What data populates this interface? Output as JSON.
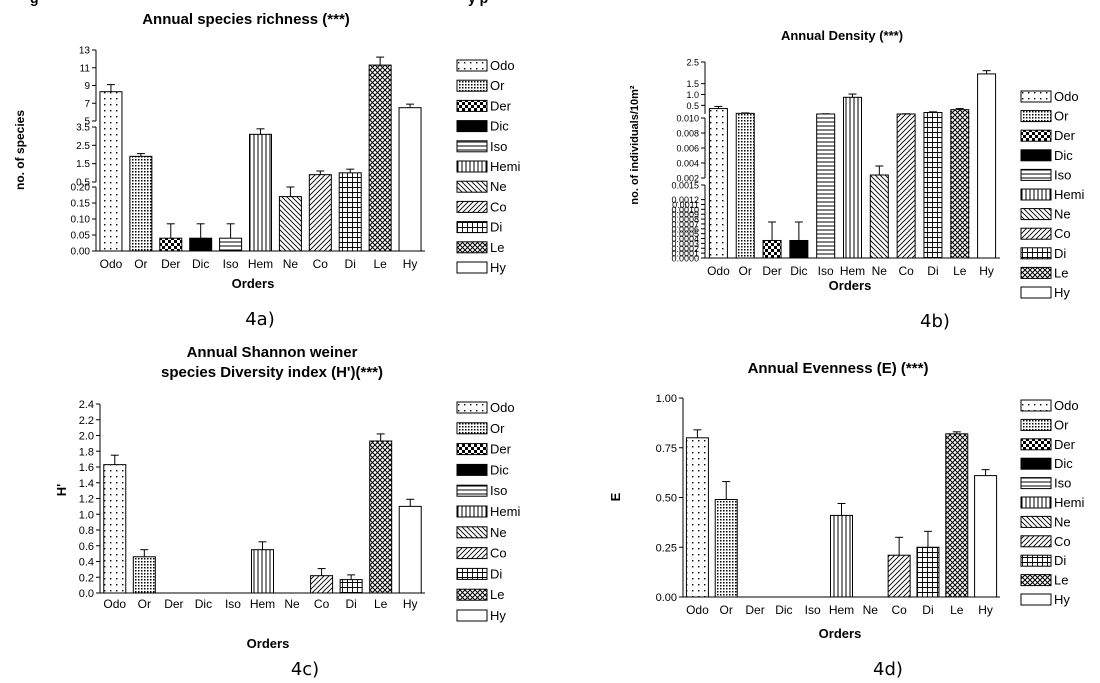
{
  "top_fragment_left": "g",
  "top_fragment_right": "y p",
  "legend": [
    {
      "label": "Odo",
      "pattern": "dots"
    },
    {
      "label": "Or",
      "pattern": "dense"
    },
    {
      "label": "Der",
      "pattern": "checker"
    },
    {
      "label": "Dic",
      "pattern": "solid"
    },
    {
      "label": "Iso",
      "pattern": "hlines"
    },
    {
      "label": "Hemi",
      "pattern": "vlines"
    },
    {
      "label": "Ne",
      "pattern": "diagdown"
    },
    {
      "label": "Co",
      "pattern": "diagup"
    },
    {
      "label": "Di",
      "pattern": "grid"
    },
    {
      "label": "Le",
      "pattern": "crosshatch"
    },
    {
      "label": "Hy",
      "pattern": "none"
    }
  ],
  "chart_data": [
    {
      "type": "bar",
      "title": "Annual species richness (***)",
      "xlabel": "Orders",
      "ylabel": "no. of species",
      "caption": "4a)",
      "categories": [
        "Odo",
        "Or",
        "Der",
        "Dic",
        "Iso",
        "Hem",
        "Ne",
        "Co",
        "Di",
        "Le",
        "Hy"
      ],
      "values": [
        8.3,
        1.9,
        0.04,
        0.04,
        0.04,
        3.1,
        0.17,
        0.9,
        1.0,
        11.3,
        6.5
      ],
      "errors": [
        0.8,
        0.15,
        0.045,
        0.045,
        0.045,
        0.3,
        0.04,
        0.2,
        0.2,
        0.9,
        0.4
      ],
      "segments": [
        {
          "range": [
            0,
            0.2
          ],
          "ticks": [
            "0.00",
            "0.05",
            "0.10",
            "0.15",
            "0.20"
          ]
        },
        {
          "range": [
            0.5,
            3.5
          ],
          "ticks": [
            "0.5",
            "1.5",
            "2.5",
            "3.5"
          ]
        },
        {
          "range": [
            5,
            13
          ],
          "ticks": [
            "5",
            "7",
            "9",
            "11",
            "13"
          ]
        }
      ]
    },
    {
      "type": "bar",
      "title": "Annual Density (***)",
      "xlabel": "Orders",
      "ylabel": "no. of individuals/10m²",
      "caption": "4b)",
      "categories": [
        "Odo",
        "Or",
        "Der",
        "Dic",
        "Iso",
        "Hem",
        "Ne",
        "Co",
        "Di",
        "Le",
        "Hy"
      ],
      "values": [
        0.35,
        0.13,
        0.00036,
        0.00036,
        0.1,
        0.87,
        0.0024,
        0.1,
        0.17,
        0.3,
        1.95
      ],
      "errors": [
        0.1,
        0.02,
        0.00038,
        0.00038,
        0.01,
        0.15,
        0.0012,
        0.01,
        0.03,
        0.05,
        0.15
      ],
      "segments": [
        {
          "range": [
            0,
            0.0015
          ],
          "ticks": [
            "0.0000",
            "0.0001",
            "0.0002",
            "0.0003",
            "0.0004",
            "0.0005",
            "0.0006",
            "0.0007",
            "0.0008",
            "0.0009",
            "0.0010",
            "0.0011",
            "0.0012",
            "0.0015"
          ]
        },
        {
          "range": [
            0.002,
            0.01
          ],
          "ticks": [
            "0.002",
            "0.004",
            "0.006",
            "0.008",
            "0.010"
          ]
        },
        {
          "range": [
            0.1,
            2.5
          ],
          "ticks": [
            "0.5",
            "1.0",
            "1.5",
            "2.5"
          ]
        }
      ]
    },
    {
      "type": "bar",
      "title": "Annual Shannon weiner species Diversity index (H')(***)",
      "title_lines": [
        "Annual Shannon weiner",
        "species Diversity index (H')(***)"
      ],
      "xlabel": "Orders",
      "ylabel": "H'",
      "caption": "4c)",
      "categories": [
        "Odo",
        "Or",
        "Der",
        "Dic",
        "Iso",
        "Hem",
        "Ne",
        "Co",
        "Di",
        "Le",
        "Hy"
      ],
      "values": [
        1.63,
        0.46,
        0,
        0,
        0,
        0.55,
        0,
        0.22,
        0.17,
        1.93,
        1.1
      ],
      "errors": [
        0.12,
        0.09,
        0,
        0,
        0,
        0.1,
        0,
        0.09,
        0.06,
        0.09,
        0.09
      ],
      "ylim": [
        0,
        2.4
      ],
      "yticks": [
        "0.0",
        "0.2",
        "0.4",
        "0.6",
        "0.8",
        "1.0",
        "1.2",
        "1.4",
        "1.6",
        "1.8",
        "2.0",
        "2.2",
        "2.4"
      ]
    },
    {
      "type": "bar",
      "title": "Annual Evenness (E) (***)",
      "xlabel": "Orders",
      "ylabel": "E",
      "caption": "4d)",
      "categories": [
        "Odo",
        "Or",
        "Der",
        "Dic",
        "Iso",
        "Hem",
        "Ne",
        "Co",
        "Di",
        "Le",
        "Hy"
      ],
      "values": [
        0.8,
        0.49,
        0,
        0,
        0,
        0.41,
        0,
        0.21,
        0.25,
        0.82,
        0.61
      ],
      "errors": [
        0.04,
        0.09,
        0,
        0,
        0,
        0.06,
        0,
        0.09,
        0.08,
        0.01,
        0.03
      ],
      "ylim": [
        0,
        1
      ],
      "yticks": [
        "0.00",
        "0.25",
        "0.50",
        "0.75",
        "1.00"
      ]
    }
  ]
}
